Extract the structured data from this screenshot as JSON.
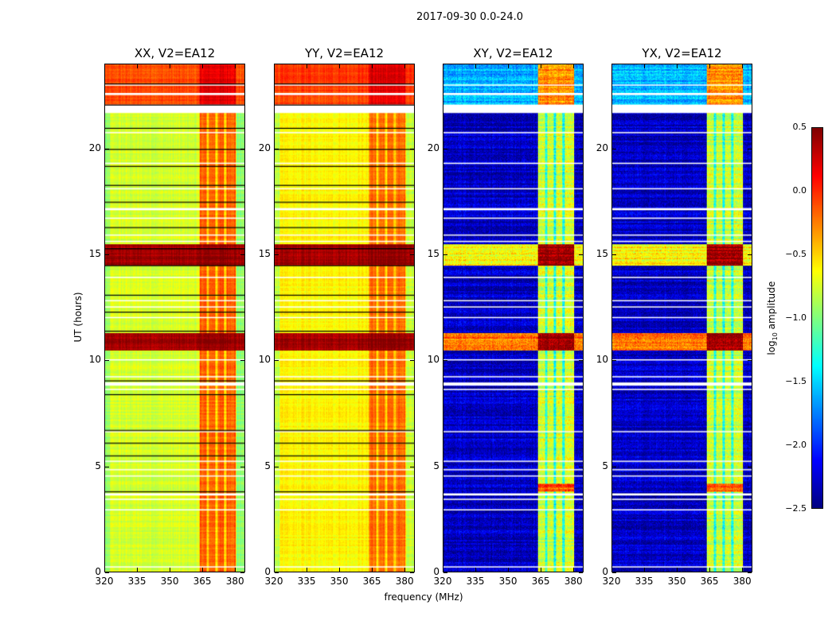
{
  "chart_data": {
    "type": "heatmap",
    "title": "2017-09-30 0.0-24.0",
    "xlabel": "frequency (MHz)",
    "ylabel": "UT (hours)",
    "xlim": [
      320,
      384.7
    ],
    "ylim": [
      0,
      24
    ],
    "xticks": [
      "320",
      "335",
      "350",
      "365",
      "380"
    ],
    "xtick_values": [
      320,
      335,
      350,
      365,
      380
    ],
    "yticks": [
      "0",
      "5",
      "10",
      "15",
      "20"
    ],
    "ytick_values": [
      0,
      5,
      10,
      15,
      20
    ],
    "colorbar": {
      "label": "log",
      "label_sub": "10",
      "label_rest": " amplitude",
      "range": [
        -2.5,
        0.5
      ],
      "ticks": [
        "0.5",
        "0.0",
        "−0.5",
        "−1.0",
        "−1.5",
        "−2.0",
        "−2.5"
      ],
      "tick_values": [
        0.5,
        0.0,
        -0.5,
        -1.0,
        -1.5,
        -2.0,
        -2.5
      ],
      "colormap": "jet"
    },
    "panels": [
      {
        "title": "XX, V2=EA12",
        "kind": "parallel",
        "base": -0.75,
        "band": -0.15,
        "top_level": -0.1
      },
      {
        "title": "YY, V2=EA12",
        "kind": "parallel",
        "base": -0.6,
        "band": -0.2,
        "top_level": -0.05
      },
      {
        "title": "XY, V2=EA12",
        "kind": "cross",
        "base": -2.3,
        "band": -0.75,
        "top_level": -1.6
      },
      {
        "title": "YX, V2=EA12",
        "kind": "cross",
        "base": -2.3,
        "band": -0.75,
        "top_level": -1.6
      }
    ],
    "band_mhz": [
      363.5,
      380.5
    ],
    "band_gaps_mhz": [
      367.5,
      371.5,
      375.5
    ],
    "strong_rfi_hours": [
      [
        10.5,
        11.3
      ],
      [
        14.5,
        15.5
      ]
    ],
    "flagged_hours": [
      [
        21.7,
        22.1
      ],
      [
        22.55,
        22.65
      ],
      [
        23.0,
        23.05
      ],
      [
        20.75,
        20.8
      ],
      [
        19.3,
        19.35
      ],
      [
        18.1,
        18.15
      ],
      [
        17.1,
        17.2
      ],
      [
        16.7,
        16.75
      ],
      [
        15.9,
        15.95
      ],
      [
        15.6,
        15.65
      ],
      [
        13.9,
        13.95
      ],
      [
        12.8,
        12.85
      ],
      [
        12.5,
        12.55
      ],
      [
        12.0,
        12.05
      ],
      [
        10.0,
        10.05
      ],
      [
        9.2,
        9.25
      ],
      [
        8.8,
        8.95
      ],
      [
        8.6,
        8.65
      ],
      [
        6.6,
        6.65
      ],
      [
        5.2,
        5.25
      ],
      [
        4.8,
        4.85
      ],
      [
        4.5,
        4.55
      ],
      [
        3.6,
        3.7
      ],
      [
        3.4,
        3.45
      ],
      [
        2.9,
        2.95
      ],
      [
        0.2,
        0.25
      ]
    ],
    "black_line_hours": [
      23.1,
      22.1,
      21.0,
      20.0,
      19.2,
      18.3,
      17.5,
      16.3,
      15.3,
      14.5,
      13.1,
      12.3,
      11.4,
      9.05,
      8.4,
      6.7,
      6.1,
      5.5,
      3.8
    ]
  }
}
